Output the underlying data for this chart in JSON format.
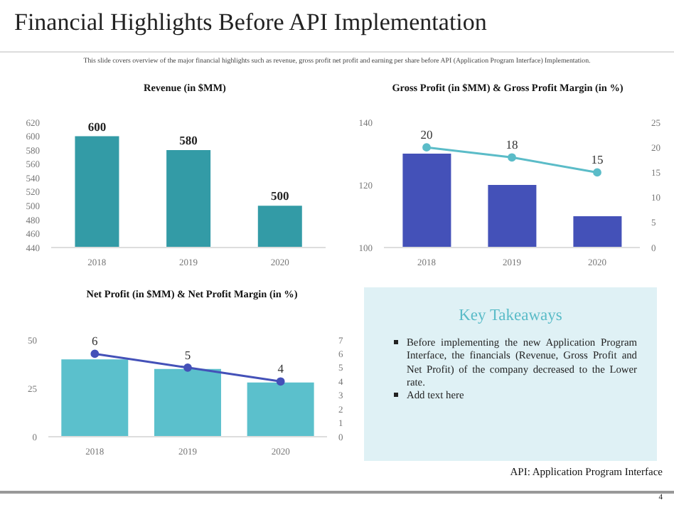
{
  "chart_data": [
    {
      "type": "other",
      "title": "Financial Highlights Before API Implementation",
      "subtitle": "This slide covers overview of the major financial highlights such as revenue, gross profit net profit and earning per share before API (Application Program Interface) Implementation.",
      "annotations": [
        "API: Application Program Interface",
        "4"
      ]
    },
    {
      "type": "bar",
      "title": "Revenue (in $MM)",
      "categories": [
        "2018",
        "2019",
        "2020"
      ],
      "values": [
        600,
        580,
        500
      ],
      "color": "#339ba6",
      "ylim": [
        440,
        620
      ],
      "yticks": [
        440,
        460,
        480,
        500,
        520,
        540,
        560,
        580,
        600,
        620
      ],
      "data_labels": true
    },
    {
      "type": "bar",
      "title": "Gross Profit (in $MM) & Gross Profit Margin (in %)",
      "categories": [
        "2018",
        "2019",
        "2020"
      ],
      "series": [
        {
          "type": "bar",
          "color": "#4451b8",
          "values": [
            130,
            120,
            110
          ]
        },
        {
          "type": "line",
          "axis": "y2",
          "color": "#5bbcc8",
          "values": [
            20,
            18,
            15
          ],
          "value_labels": [
            "20",
            "18",
            "15"
          ]
        }
      ],
      "ylim": [
        100,
        140
      ],
      "yticks": [
        100,
        120,
        140
      ],
      "y2lim": [
        0,
        25
      ],
      "y2ticks": [
        0,
        5,
        10,
        15,
        20,
        25
      ],
      "marker": "circle"
    },
    {
      "type": "bar",
      "title": "Net Profit (in $MM) & Net Profit Margin (in %)",
      "categories": [
        "2018",
        "2019",
        "2020"
      ],
      "series": [
        {
          "type": "bar",
          "color": "#5bc0cc",
          "values": [
            40,
            35,
            28
          ]
        },
        {
          "type": "line",
          "axis": "y2",
          "color": "#4451b8",
          "values": [
            6,
            5,
            4
          ],
          "value_labels": [
            "6",
            "5",
            "4"
          ]
        }
      ],
      "ylim": [
        0,
        50
      ],
      "yticks": [
        0,
        25,
        50
      ],
      "y2lim": [
        0,
        7
      ],
      "y2ticks": [
        0,
        1,
        2,
        3,
        4,
        5,
        6,
        7
      ],
      "marker": "circle"
    },
    {
      "type": "other",
      "title": "Key Takeaways",
      "annotations": [
        "Before implementing the new Application Program Interface, the financials (Revenue, Gross Profit and Net Profit) of the company decreased to the Lower rate.",
        "Add text here"
      ]
    }
  ]
}
